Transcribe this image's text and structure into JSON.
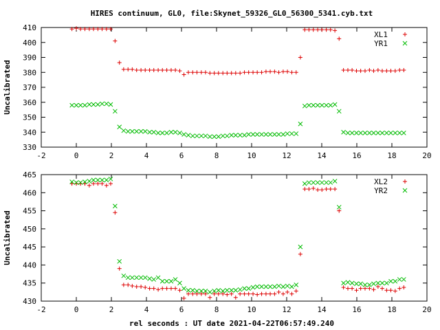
{
  "title": "HIRES continuum, GL0, file:Skynet_59326_GL0_56300_5341.cyb.txt",
  "xlabel": "rel seconds : UT date 2021-04-22T06:57:49.240",
  "colors": {
    "red": "#dd0000",
    "green": "#00bb00"
  },
  "chart_data": [
    {
      "type": "scatter",
      "ylabel": "Uncalibrated",
      "xlim": [
        -2,
        20
      ],
      "ylim": [
        330,
        410
      ],
      "xticks": [
        -2,
        0,
        2,
        4,
        6,
        8,
        10,
        12,
        14,
        16,
        18,
        20
      ],
      "yticks": [
        330,
        340,
        350,
        360,
        370,
        380,
        390,
        400,
        410
      ],
      "legend": "top-right",
      "series": [
        {
          "name": "XL1",
          "marker": "plus",
          "color": "red",
          "x": [
            -0.25,
            0.0,
            0.24,
            0.49,
            0.74,
            0.98,
            1.23,
            1.47,
            1.72,
            1.96,
            2.21,
            2.46,
            2.7,
            2.95,
            3.19,
            3.44,
            3.69,
            3.93,
            4.18,
            4.42,
            4.67,
            4.91,
            5.16,
            5.41,
            5.65,
            5.9,
            6.14,
            6.39,
            6.64,
            6.88,
            7.13,
            7.37,
            7.62,
            7.87,
            8.11,
            8.36,
            8.6,
            8.85,
            9.09,
            9.34,
            9.59,
            9.83,
            10.08,
            10.32,
            10.57,
            10.82,
            11.06,
            11.31,
            11.55,
            11.8,
            12.04,
            12.29,
            12.54,
            12.78,
            13.03,
            13.27,
            13.52,
            13.77,
            14.01,
            14.26,
            14.5,
            14.75,
            14.99,
            15.24,
            15.49,
            15.73,
            15.98,
            16.22,
            16.47,
            16.72,
            16.96,
            17.21,
            17.45,
            17.7,
            17.94,
            18.19,
            18.44,
            18.68
          ],
          "y": [
            409,
            409.5,
            409,
            409,
            409,
            409,
            409,
            409,
            409,
            409,
            401,
            386.5,
            382,
            382,
            382,
            381.5,
            381.5,
            381.5,
            381.5,
            381.5,
            381.5,
            381.5,
            381.5,
            381.5,
            381.5,
            381,
            378.5,
            380,
            380,
            380,
            380,
            380,
            379.5,
            379.5,
            379.5,
            379.5,
            379.5,
            379.5,
            379.5,
            379.5,
            380,
            380,
            380,
            380,
            380,
            380.5,
            380.5,
            380.5,
            380,
            380.5,
            380.5,
            380,
            380,
            390,
            408.5,
            408.5,
            408.5,
            408.5,
            408.5,
            408.5,
            408.5,
            408,
            402.5,
            381.5,
            381.5,
            381.5,
            381,
            381,
            381,
            381.5,
            381,
            381.5,
            381,
            381,
            381,
            381,
            381.5,
            381.5
          ]
        },
        {
          "name": "YR1",
          "marker": "cross",
          "color": "green",
          "x": [
            -0.25,
            0.0,
            0.24,
            0.49,
            0.74,
            0.98,
            1.23,
            1.47,
            1.72,
            1.96,
            2.21,
            2.46,
            2.7,
            2.95,
            3.19,
            3.44,
            3.69,
            3.93,
            4.18,
            4.42,
            4.67,
            4.91,
            5.16,
            5.41,
            5.65,
            5.9,
            6.14,
            6.39,
            6.64,
            6.88,
            7.13,
            7.37,
            7.62,
            7.87,
            8.11,
            8.36,
            8.6,
            8.85,
            9.09,
            9.34,
            9.59,
            9.83,
            10.08,
            10.32,
            10.57,
            10.82,
            11.06,
            11.31,
            11.55,
            11.8,
            12.04,
            12.29,
            12.54,
            12.78,
            13.03,
            13.27,
            13.52,
            13.77,
            14.01,
            14.26,
            14.5,
            14.75,
            14.99,
            15.24,
            15.49,
            15.73,
            15.98,
            16.22,
            16.47,
            16.72,
            16.96,
            17.21,
            17.45,
            17.7,
            17.94,
            18.19,
            18.44,
            18.68
          ],
          "y": [
            358,
            358,
            358,
            358,
            358.5,
            358.5,
            358.5,
            359,
            359,
            358.5,
            354,
            343.5,
            341,
            340.5,
            340.5,
            340.5,
            340.5,
            340.5,
            340,
            340,
            339.5,
            339.5,
            339.5,
            340,
            340,
            339.5,
            338.5,
            338,
            337.5,
            337.5,
            337.5,
            337.5,
            337,
            337,
            337,
            337.5,
            337.5,
            338,
            338,
            338,
            338,
            338.5,
            338.5,
            338.5,
            338.5,
            338.5,
            338.5,
            338.5,
            338.5,
            338.5,
            339,
            339,
            339,
            345.5,
            357.5,
            358,
            358,
            358,
            358,
            358,
            358,
            358.5,
            354,
            340,
            339.5,
            339.5,
            339.5,
            339.5,
            339.5,
            339.5,
            339.5,
            339.5,
            339.5,
            339.5,
            339.5,
            339.5,
            339.5,
            339.5
          ]
        }
      ]
    },
    {
      "type": "scatter",
      "ylabel": "Uncalibrated",
      "xlim": [
        -2,
        20
      ],
      "ylim": [
        430,
        465
      ],
      "xticks": [
        -2,
        0,
        2,
        4,
        6,
        8,
        10,
        12,
        14,
        16,
        18,
        20
      ],
      "yticks": [
        430,
        435,
        440,
        445,
        450,
        455,
        460,
        465
      ],
      "legend": "top-right",
      "series": [
        {
          "name": "XL2",
          "marker": "plus",
          "color": "red",
          "x": [
            -0.25,
            0.0,
            0.24,
            0.49,
            0.74,
            0.98,
            1.23,
            1.47,
            1.72,
            1.96,
            2.21,
            2.46,
            2.7,
            2.95,
            3.19,
            3.44,
            3.69,
            3.93,
            4.18,
            4.42,
            4.67,
            4.91,
            5.16,
            5.41,
            5.65,
            5.9,
            6.14,
            6.39,
            6.64,
            6.88,
            7.13,
            7.37,
            7.62,
            7.87,
            8.11,
            8.36,
            8.6,
            8.85,
            9.09,
            9.34,
            9.59,
            9.83,
            10.08,
            10.32,
            10.57,
            10.82,
            11.06,
            11.31,
            11.55,
            11.8,
            12.04,
            12.29,
            12.54,
            12.78,
            13.03,
            13.27,
            13.52,
            13.77,
            14.01,
            14.26,
            14.5,
            14.75,
            14.99,
            15.24,
            15.49,
            15.73,
            15.98,
            16.22,
            16.47,
            16.72,
            16.96,
            17.21,
            17.45,
            17.7,
            17.94,
            18.19,
            18.44,
            18.68
          ],
          "y": [
            462.5,
            462.5,
            462.5,
            462.5,
            462,
            462.5,
            462.5,
            462.5,
            462,
            462.5,
            454.5,
            439,
            434.5,
            434.5,
            434.2,
            434,
            434,
            433.8,
            433.5,
            433.5,
            433.2,
            433.5,
            433.5,
            433.5,
            433.5,
            433,
            430.8,
            432,
            432,
            432,
            432,
            432,
            431,
            432,
            432,
            432,
            431.8,
            432,
            431,
            432,
            432,
            432,
            432,
            431.8,
            432,
            432,
            432,
            432,
            432.5,
            432,
            432.5,
            432,
            432.8,
            443,
            461,
            461,
            461.2,
            460.8,
            460.8,
            461,
            461,
            461,
            455,
            433.8,
            433.5,
            433.5,
            433,
            433.5,
            433.5,
            433.5,
            433.2,
            434,
            433.5,
            433,
            433,
            432.8,
            433.5,
            433.8
          ]
        },
        {
          "name": "YR2",
          "marker": "cross",
          "color": "green",
          "x": [
            -0.25,
            0.0,
            0.24,
            0.49,
            0.74,
            0.98,
            1.23,
            1.47,
            1.72,
            1.96,
            2.21,
            2.46,
            2.7,
            2.95,
            3.19,
            3.44,
            3.69,
            3.93,
            4.18,
            4.42,
            4.67,
            4.91,
            5.16,
            5.41,
            5.65,
            5.9,
            6.14,
            6.39,
            6.64,
            6.88,
            7.13,
            7.37,
            7.62,
            7.87,
            8.11,
            8.36,
            8.6,
            8.85,
            9.09,
            9.34,
            9.59,
            9.83,
            10.08,
            10.32,
            10.57,
            10.82,
            11.06,
            11.31,
            11.55,
            11.8,
            12.04,
            12.29,
            12.54,
            12.78,
            13.03,
            13.27,
            13.52,
            13.77,
            14.01,
            14.26,
            14.5,
            14.75,
            14.99,
            15.24,
            15.49,
            15.73,
            15.98,
            16.22,
            16.47,
            16.72,
            16.96,
            17.21,
            17.45,
            17.7,
            17.94,
            18.19,
            18.44,
            18.68
          ],
          "y": [
            463,
            462.8,
            462.8,
            463,
            463.2,
            463.5,
            463.5,
            463.5,
            463.5,
            463.8,
            456.3,
            441,
            437,
            436.5,
            436.5,
            436.5,
            436.5,
            436.5,
            436.2,
            436,
            436.5,
            435.5,
            435.5,
            435.5,
            436,
            435,
            433.5,
            433,
            433,
            432.8,
            432.8,
            432.8,
            432.5,
            432.8,
            433,
            432.8,
            433,
            433,
            433,
            433.2,
            433.5,
            433.5,
            433.8,
            434,
            434,
            434,
            434,
            434,
            434.2,
            434,
            434.2,
            434,
            434.5,
            445,
            462.5,
            462.8,
            462.8,
            462.8,
            462.8,
            462.8,
            462.8,
            463.2,
            456,
            435,
            435.2,
            435,
            434.8,
            434.8,
            434.5,
            434.5,
            434.8,
            435,
            435,
            435,
            435.5,
            435.5,
            436,
            436
          ]
        }
      ]
    }
  ]
}
